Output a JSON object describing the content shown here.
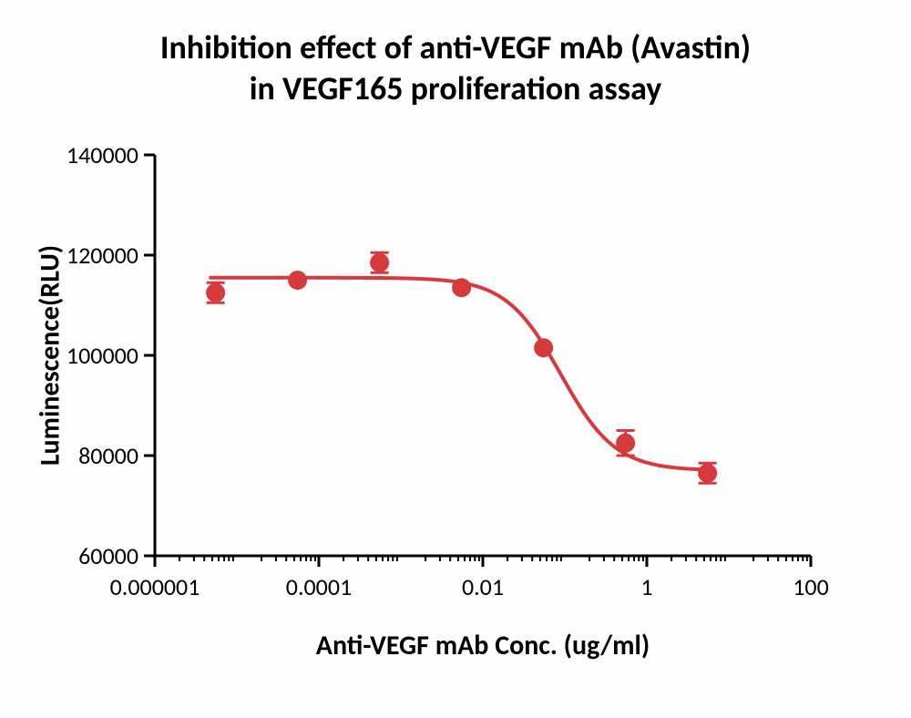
{
  "chart": {
    "type": "scatter-with-fit-curve",
    "title_line1": "Inhibition effect of anti-VEGF mAb (Avastin)",
    "title_line2": "in VEGF165 proliferation assay",
    "title_fontsize": 36,
    "title_fontweight": 700,
    "xlabel": "Anti-VEGF mAb Conc. (ug/ml)",
    "ylabel": "Luminescence(RLU)",
    "axis_label_fontsize": 30,
    "axis_label_fontweight": 700,
    "tick_fontsize": 26,
    "background_color": "#fefefe",
    "axis_color": "#000000",
    "axis_linewidth": 3,
    "tick_length_major": 12,
    "tick_length_minor": 6,
    "xscale": "log",
    "yscale": "linear",
    "xlim": [
      1e-06,
      100
    ],
    "ylim": [
      60000,
      140000
    ],
    "xticks_major": [
      1e-06,
      0.0001,
      0.01,
      1,
      100
    ],
    "xticks_major_labels": [
      "0.000001",
      "0.0001",
      "0.01",
      "1",
      "100"
    ],
    "yticks": [
      60000,
      80000,
      100000,
      120000,
      140000
    ],
    "ytick_labels": [
      "60000",
      "80000",
      "100000",
      "120000",
      "140000"
    ],
    "series": {
      "color": "#d53a3d",
      "marker": "circle",
      "marker_size": 10,
      "line_width": 4,
      "errorbar_cap_width": 10,
      "errorbar_width": 3,
      "points": [
        {
          "x": 5.5e-06,
          "y": 112500,
          "err": 2000
        },
        {
          "x": 5.5e-05,
          "y": 115000,
          "err": 300
        },
        {
          "x": 0.00055,
          "y": 118500,
          "err": 2000
        },
        {
          "x": 0.0055,
          "y": 113500,
          "err": 300
        },
        {
          "x": 0.055,
          "y": 101500,
          "err": 300
        },
        {
          "x": 0.55,
          "y": 82500,
          "err": 2500
        },
        {
          "x": 5.5,
          "y": 76500,
          "err": 2000
        }
      ],
      "fit_curve": {
        "top": 115500,
        "bottom": 77000,
        "logIC50": -1.05,
        "hillslope": -1.3
      }
    }
  }
}
